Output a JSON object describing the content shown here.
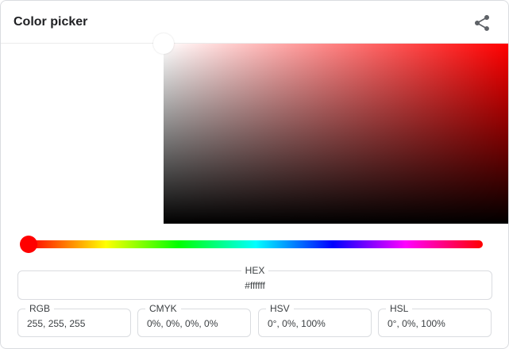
{
  "header": {
    "title": "Color picker",
    "share_icon": "share-icon"
  },
  "color": {
    "hex_value": "#ffffff",
    "preview_color": "#ffffff",
    "hue_color": "#ff0000",
    "hue_degrees": 0,
    "saturation": 0,
    "value": 1
  },
  "fields": {
    "hex": {
      "label": "HEX",
      "value": "#ffffff"
    },
    "rgb": {
      "label": "RGB",
      "value": "255, 255, 255"
    },
    "cmyk": {
      "label": "CMYK",
      "value": "0%, 0%, 0%, 0%"
    },
    "hsv": {
      "label": "HSV",
      "value": "0°, 0%, 100%"
    },
    "hsl": {
      "label": "HSL",
      "value": "0°, 0%, 100%"
    }
  }
}
